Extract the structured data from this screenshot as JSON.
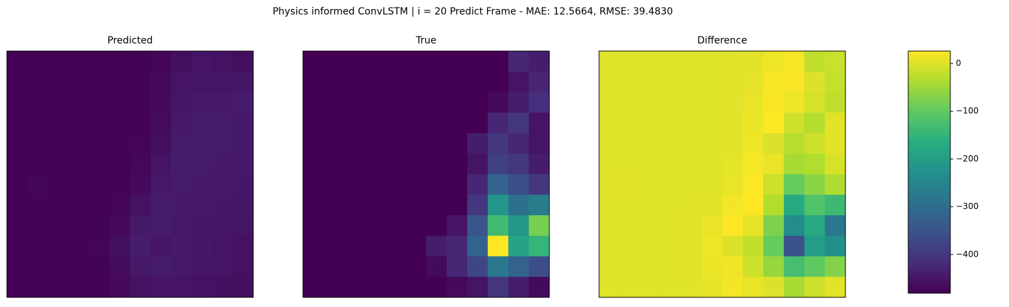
{
  "title": "Physics informed ConvLSTM | i = 20 Predict Frame - MAE: 12.5664, RMSE: 39.4830",
  "chart_data": [
    {
      "type": "heatmap",
      "title": "Predicted",
      "values": [
        [
          2,
          2,
          2,
          2,
          2,
          2,
          3,
          5,
          15,
          20,
          18,
          15
        ],
        [
          2,
          2,
          2,
          2,
          2,
          2,
          3,
          8,
          20,
          22,
          20,
          22
        ],
        [
          2,
          2,
          2,
          2,
          2,
          2,
          3,
          10,
          22,
          25,
          25,
          28
        ],
        [
          2,
          2,
          2,
          2,
          2,
          2,
          3,
          12,
          25,
          28,
          28,
          25
        ],
        [
          2,
          2,
          2,
          2,
          2,
          2,
          4,
          15,
          28,
          30,
          28,
          25
        ],
        [
          2,
          2,
          2,
          2,
          2,
          2,
          6,
          20,
          30,
          28,
          26,
          25
        ],
        [
          2,
          5,
          2,
          2,
          2,
          2,
          10,
          25,
          28,
          26,
          25,
          24
        ],
        [
          2,
          2,
          2,
          2,
          2,
          4,
          18,
          28,
          26,
          25,
          24,
          22
        ],
        [
          2,
          2,
          2,
          2,
          3,
          10,
          26,
          28,
          25,
          24,
          22,
          20
        ],
        [
          2,
          2,
          2,
          2,
          4,
          15,
          30,
          20,
          26,
          24,
          20,
          18
        ],
        [
          2,
          2,
          2,
          2,
          3,
          12,
          26,
          28,
          25,
          22,
          20,
          18
        ],
        [
          2,
          2,
          2,
          2,
          2,
          8,
          18,
          20,
          20,
          18,
          16,
          15
        ]
      ]
    },
    {
      "type": "heatmap",
      "title": "True",
      "values": [
        [
          0,
          0,
          0,
          0,
          0,
          0,
          0,
          0,
          0,
          0,
          40,
          30
        ],
        [
          0,
          0,
          0,
          0,
          0,
          0,
          0,
          0,
          0,
          0,
          20,
          40
        ],
        [
          0,
          0,
          0,
          0,
          0,
          0,
          0,
          0,
          0,
          10,
          30,
          50
        ],
        [
          0,
          0,
          0,
          0,
          0,
          0,
          0,
          0,
          0,
          40,
          60,
          20
        ],
        [
          0,
          0,
          0,
          0,
          0,
          0,
          0,
          0,
          30,
          60,
          40,
          20
        ],
        [
          0,
          0,
          0,
          0,
          0,
          0,
          0,
          0,
          20,
          70,
          60,
          30
        ],
        [
          0,
          0,
          0,
          0,
          0,
          0,
          0,
          0,
          40,
          120,
          90,
          60
        ],
        [
          0,
          0,
          0,
          0,
          0,
          0,
          0,
          0,
          60,
          200,
          140,
          160
        ],
        [
          0,
          0,
          0,
          0,
          0,
          0,
          0,
          20,
          100,
          260,
          200,
          300
        ],
        [
          0,
          0,
          0,
          0,
          0,
          0,
          30,
          40,
          120,
          380,
          220,
          250
        ],
        [
          0,
          0,
          0,
          0,
          0,
          0,
          10,
          40,
          80,
          150,
          120,
          90
        ],
        [
          0,
          0,
          0,
          0,
          0,
          0,
          0,
          10,
          20,
          60,
          30,
          10
        ]
      ]
    },
    {
      "type": "heatmap",
      "title": "Difference",
      "values": [
        [
          2,
          2,
          2,
          2,
          2,
          2,
          3,
          5,
          15,
          20,
          -22,
          -15
        ],
        [
          2,
          2,
          2,
          2,
          2,
          2,
          3,
          8,
          20,
          22,
          0,
          -18
        ],
        [
          2,
          2,
          2,
          2,
          2,
          2,
          3,
          10,
          22,
          15,
          -5,
          -22
        ],
        [
          2,
          2,
          2,
          2,
          2,
          2,
          3,
          12,
          25,
          -12,
          -32,
          5
        ],
        [
          2,
          2,
          2,
          2,
          2,
          2,
          4,
          15,
          -2,
          -30,
          -12,
          5
        ],
        [
          2,
          2,
          2,
          2,
          2,
          2,
          6,
          20,
          10,
          -42,
          -34,
          -5
        ],
        [
          2,
          5,
          2,
          2,
          2,
          2,
          10,
          25,
          -12,
          -94,
          -65,
          -36
        ],
        [
          2,
          2,
          2,
          2,
          2,
          4,
          18,
          28,
          -34,
          -175,
          -116,
          -138
        ],
        [
          2,
          2,
          2,
          2,
          3,
          10,
          26,
          8,
          -75,
          -236,
          -178,
          -280
        ],
        [
          2,
          2,
          2,
          2,
          4,
          15,
          0,
          -20,
          -94,
          -356,
          -200,
          -232
        ],
        [
          2,
          2,
          2,
          2,
          3,
          12,
          16,
          -12,
          -55,
          -128,
          -100,
          -72
        ],
        [
          2,
          2,
          2,
          2,
          2,
          8,
          18,
          10,
          0,
          -42,
          -14,
          5
        ]
      ],
      "colorbar": {
        "ylim": [
          -481,
          26
        ],
        "yticks": [
          0,
          {
            "value": -100,
            "label": "−100"
          },
          {
            "value": -200,
            "label": "−200"
          },
          {
            "value": -300,
            "label": "−300"
          },
          {
            "value": -400,
            "label": "−400"
          }
        ]
      }
    }
  ]
}
